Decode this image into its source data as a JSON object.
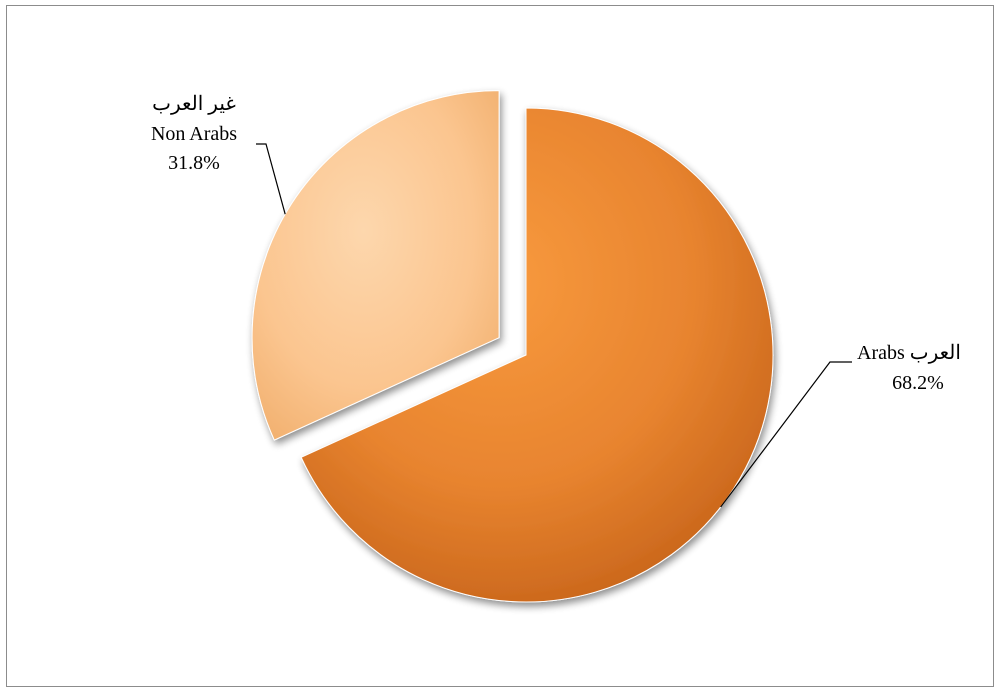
{
  "chart_data": {
    "type": "pie",
    "title": "",
    "slices": [
      {
        "label_ar": "العرب",
        "label_en": "Arabs",
        "value": 68.2,
        "value_label": "68.2%",
        "color": "#e37a26",
        "exploded": false
      },
      {
        "label_ar": "غير العرب",
        "label_en": "Non Arabs",
        "value": 31.8,
        "value_label": "31.8%",
        "color": "#fbc58f",
        "exploded": true
      }
    ],
    "start_angle_deg": 0,
    "direction": "clockwise",
    "legend": "none",
    "data_labels": "outside-with-leader-lines"
  }
}
